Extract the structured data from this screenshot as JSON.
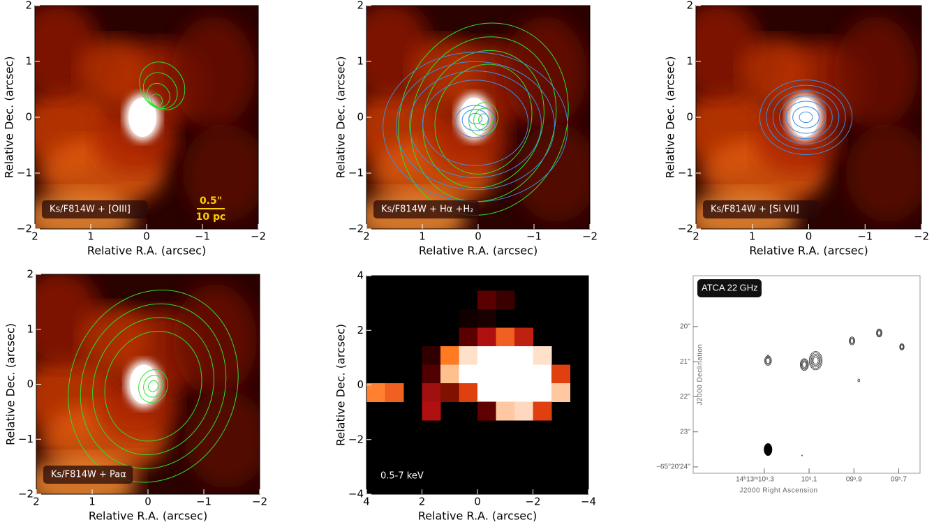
{
  "chart_data": [
    {
      "type": "image",
      "label": "Ks/F814W + [OIII]",
      "scale_bar": {
        "length": "0.5\"",
        "distance": "10 pc"
      },
      "xlabel": "Relative R.A. (arcsec)",
      "ylabel": "Relative Dec. (arcsec)",
      "xlim": [
        2,
        -2
      ],
      "ylim": [
        -2,
        2
      ],
      "xticks": [
        2,
        1,
        0,
        {
          "value": -1,
          "label": "−1"
        },
        {
          "value": -2,
          "label": "−2"
        }
      ],
      "yticks": [
        {
          "value": -2,
          "label": "−2"
        },
        {
          "value": -1,
          "label": "−1"
        },
        0,
        1,
        2
      ]
    },
    {
      "type": "image",
      "label": "Ks/F814W + Hα +H₂",
      "xlabel": "Relative R.A. (arcsec)",
      "ylabel": "Relative Dec. (arcsec)",
      "xlim": [
        2,
        -2
      ],
      "ylim": [
        -2,
        2
      ],
      "xticks": [
        2,
        1,
        0,
        {
          "value": -1,
          "label": "−1"
        },
        {
          "value": -2,
          "label": "−2"
        }
      ],
      "yticks": [
        {
          "value": -2,
          "label": "−2"
        },
        {
          "value": -1,
          "label": "−1"
        },
        0,
        1,
        2
      ]
    },
    {
      "type": "image",
      "label": "Ks/F814W + [Si VII]",
      "xlabel": "Relative R.A. (arcsec)",
      "ylabel": "Relative Dec. (arcsec)",
      "xlim": [
        2,
        -2
      ],
      "ylim": [
        -2,
        2
      ],
      "xticks": [
        2,
        1,
        0,
        {
          "value": -1,
          "label": "−1"
        },
        {
          "value": -2,
          "label": "−2"
        }
      ],
      "yticks": [
        {
          "value": -2,
          "label": "−2"
        },
        {
          "value": -1,
          "label": "−1"
        },
        0,
        1,
        2
      ]
    },
    {
      "type": "image",
      "label": "Ks/F814W + Paα",
      "xlabel": "Relative R.A. (arcsec)",
      "ylabel": "Relative Dec. (arcsec)",
      "xlim": [
        2,
        -2
      ],
      "ylim": [
        -2,
        2
      ],
      "xticks": [
        2,
        1,
        0,
        {
          "value": -1,
          "label": "−1"
        },
        {
          "value": -2,
          "label": "−2"
        }
      ],
      "yticks": [
        {
          "value": -2,
          "label": "−2"
        },
        {
          "value": -1,
          "label": "−1"
        },
        0,
        1,
        2
      ]
    },
    {
      "type": "xray",
      "label": "0.5-7 keV",
      "xlabel": "Relative R.A. (arcsec)",
      "ylabel": "Relative Dec. (arcsec)",
      "xlim": [
        4,
        -4
      ],
      "ylim": [
        -4,
        4
      ],
      "xticks": [
        4,
        2,
        0,
        {
          "value": -2,
          "label": "−2"
        },
        {
          "value": -4,
          "label": "−4"
        }
      ],
      "yticks": [
        {
          "value": -4,
          "label": "−4"
        },
        {
          "value": -2,
          "label": "−2"
        },
        0,
        2,
        4
      ]
    },
    {
      "type": "radio",
      "label": "ATCA 22 GHz",
      "xlabel": "J2000 Right Ascension",
      "ylabel": "J2000 Declination",
      "xlim": [
        10.617,
        9.605
      ],
      "ylim": [
        24.18,
        18.55
      ],
      "xticks": [
        {
          "value": 10.3,
          "label": "14ʰ13ᵐ10ˢ.3"
        },
        {
          "value": 10.1,
          "label": "10ˢ.1"
        },
        {
          "value": 9.9,
          "label": "09ˢ.9"
        },
        {
          "value": 9.7,
          "label": "09ˢ.7"
        }
      ],
      "yticks": [
        {
          "value": 20,
          "label": "20''"
        },
        {
          "value": 21,
          "label": "21''"
        },
        {
          "value": 22,
          "label": "22''"
        },
        {
          "value": 23,
          "label": "23''"
        },
        {
          "value": 24,
          "label": "−65°20'24''"
        }
      ]
    }
  ]
}
